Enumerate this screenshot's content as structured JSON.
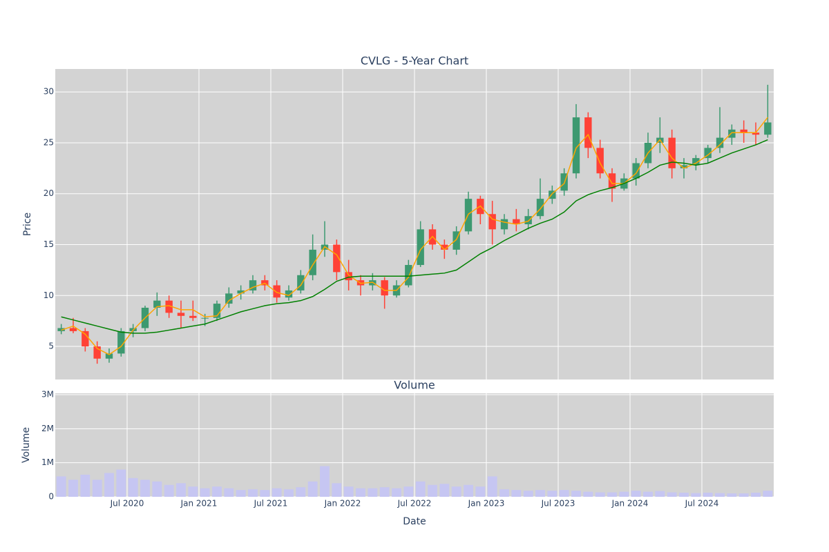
{
  "chart_data": [
    {
      "type": "candlestick",
      "title": "CVLG - 5-Year Chart",
      "y_label": "Price",
      "x": [
        "2020-01",
        "2020-02",
        "2020-03",
        "2020-04",
        "2020-05",
        "2020-06",
        "2020-07",
        "2020-08",
        "2020-09",
        "2020-10",
        "2020-11",
        "2020-12",
        "2021-01",
        "2021-02",
        "2021-03",
        "2021-04",
        "2021-05",
        "2021-06",
        "2021-07",
        "2021-08",
        "2021-09",
        "2021-10",
        "2021-11",
        "2021-12",
        "2022-01",
        "2022-02",
        "2022-03",
        "2022-04",
        "2022-05",
        "2022-06",
        "2022-07",
        "2022-08",
        "2022-09",
        "2022-10",
        "2022-11",
        "2022-12",
        "2023-01",
        "2023-02",
        "2023-03",
        "2023-04",
        "2023-05",
        "2023-06",
        "2023-07",
        "2023-08",
        "2023-09",
        "2023-10",
        "2023-11",
        "2023-12",
        "2024-01",
        "2024-02",
        "2024-03",
        "2024-04",
        "2024-05",
        "2024-06",
        "2024-07",
        "2024-08",
        "2024-09",
        "2024-10",
        "2024-11",
        "2024-12"
      ],
      "open": [
        6.5,
        6.8,
        6.5,
        5.0,
        3.8,
        4.3,
        6.5,
        6.8,
        8.8,
        9.5,
        8.3,
        8.0,
        7.8,
        7.8,
        9.2,
        10.2,
        10.5,
        11.5,
        11.0,
        9.8,
        10.5,
        12.0,
        14.5,
        15.0,
        12.3,
        11.5,
        11.0,
        11.5,
        10.0,
        11.0,
        13.0,
        16.5,
        15.0,
        14.5,
        16.3,
        19.5,
        18.0,
        16.5,
        17.5,
        17.0,
        17.8,
        19.5,
        20.3,
        22.0,
        27.5,
        24.5,
        22.0,
        20.5,
        21.5,
        23.0,
        25.0,
        25.5,
        22.5,
        22.8,
        23.5,
        24.5,
        25.5,
        26.3,
        26.0,
        25.8
      ],
      "high": [
        7.2,
        7.8,
        6.8,
        5.5,
        4.8,
        6.8,
        7.2,
        9.0,
        10.3,
        10.0,
        9.5,
        9.5,
        8.2,
        9.5,
        10.8,
        11.0,
        12.0,
        12.0,
        11.5,
        11.0,
        12.5,
        16.0,
        17.3,
        15.5,
        13.5,
        12.0,
        12.2,
        11.8,
        11.5,
        13.5,
        17.3,
        17.0,
        15.5,
        16.8,
        20.2,
        19.8,
        19.3,
        18.0,
        18.5,
        18.5,
        21.5,
        20.8,
        22.5,
        28.8,
        28.0,
        25.3,
        22.5,
        22.0,
        23.5,
        26.0,
        27.5,
        26.3,
        23.5,
        23.8,
        24.8,
        28.5,
        26.8,
        27.2,
        27.0,
        30.7
      ],
      "low": [
        6.2,
        6.3,
        4.5,
        3.3,
        3.4,
        4.0,
        5.9,
        6.5,
        8.0,
        7.8,
        6.8,
        7.5,
        7.0,
        7.5,
        8.8,
        9.6,
        10.2,
        10.5,
        9.3,
        9.5,
        10.2,
        11.5,
        13.8,
        11.5,
        10.5,
        10.0,
        10.5,
        8.7,
        9.8,
        10.8,
        12.8,
        14.5,
        13.6,
        14.0,
        16.0,
        17.0,
        15.0,
        16.0,
        16.3,
        16.5,
        17.5,
        19.0,
        19.8,
        21.5,
        23.5,
        21.5,
        19.2,
        20.3,
        20.8,
        22.5,
        24.0,
        21.5,
        21.5,
        22.3,
        23.0,
        24.0,
        24.8,
        25.0,
        24.8,
        25.5
      ],
      "close": [
        6.8,
        6.5,
        5.0,
        3.8,
        4.3,
        6.5,
        6.8,
        8.8,
        9.5,
        8.3,
        8.0,
        7.8,
        7.8,
        9.2,
        10.2,
        10.5,
        11.5,
        11.0,
        9.8,
        10.5,
        12.0,
        14.5,
        15.0,
        12.3,
        11.5,
        11.0,
        11.5,
        10.0,
        11.0,
        13.0,
        16.5,
        15.0,
        14.5,
        16.3,
        19.5,
        18.0,
        16.5,
        17.5,
        17.0,
        17.8,
        19.5,
        20.3,
        22.0,
        27.5,
        24.5,
        22.0,
        20.5,
        21.5,
        23.0,
        25.0,
        25.5,
        22.5,
        22.8,
        23.5,
        24.5,
        25.5,
        26.3,
        26.0,
        25.8,
        27.0
      ],
      "increasing_color": "#3d9970",
      "decreasing_color": "#ff4136",
      "overlays": [
        {
          "color": "orange",
          "values": [
            6.6,
            7.0,
            6.2,
            4.8,
            4.2,
            5.0,
            6.6,
            7.8,
            8.9,
            9.0,
            8.6,
            8.6,
            7.9,
            8.0,
            9.5,
            10.2,
            10.8,
            11.2,
            10.3,
            10.0,
            11.0,
            13.0,
            14.8,
            14.0,
            12.0,
            11.2,
            11.3,
            10.5,
            10.5,
            11.8,
            14.5,
            15.8,
            14.5,
            15.5,
            18.0,
            18.8,
            17.5,
            17.2,
            17.0,
            17.3,
            18.5,
            20.0,
            21.0,
            24.5,
            25.8,
            23.0,
            21.0,
            21.0,
            22.0,
            24.0,
            25.3,
            23.5,
            22.5,
            23.0,
            23.8,
            24.8,
            26.0,
            26.0,
            26.0,
            27.5
          ]
        },
        {
          "color": "green",
          "values": [
            7.9,
            7.6,
            7.3,
            7.0,
            6.7,
            6.4,
            6.3,
            6.3,
            6.4,
            6.6,
            6.8,
            7.0,
            7.2,
            7.6,
            8.0,
            8.4,
            8.7,
            9.0,
            9.2,
            9.3,
            9.5,
            9.9,
            10.6,
            11.4,
            11.8,
            11.9,
            11.9,
            11.9,
            11.9,
            11.9,
            12.0,
            12.1,
            12.2,
            12.5,
            13.3,
            14.1,
            14.7,
            15.4,
            16.0,
            16.6,
            17.1,
            17.5,
            18.2,
            19.3,
            19.9,
            20.3,
            20.6,
            21.0,
            21.5,
            22.1,
            22.8,
            23.1,
            23.0,
            22.8,
            23.0,
            23.5,
            24.0,
            24.4,
            24.8,
            25.3
          ]
        }
      ],
      "xlim": [
        "2020-01",
        "2025-01"
      ],
      "ylim": [
        1.75,
        32.25
      ],
      "yticks": [
        5,
        10,
        15,
        20,
        25,
        30
      ],
      "grid": true
    },
    {
      "type": "bar",
      "title": "Volume",
      "y_label": "Volume",
      "x_label": "Date",
      "x": [
        "2020-01",
        "2020-02",
        "2020-03",
        "2020-04",
        "2020-05",
        "2020-06",
        "2020-07",
        "2020-08",
        "2020-09",
        "2020-10",
        "2020-11",
        "2020-12",
        "2021-01",
        "2021-02",
        "2021-03",
        "2021-04",
        "2021-05",
        "2021-06",
        "2021-07",
        "2021-08",
        "2021-09",
        "2021-10",
        "2021-11",
        "2021-12",
        "2022-01",
        "2022-02",
        "2022-03",
        "2022-04",
        "2022-05",
        "2022-06",
        "2022-07",
        "2022-08",
        "2022-09",
        "2022-10",
        "2022-11",
        "2022-12",
        "2023-01",
        "2023-02",
        "2023-03",
        "2023-04",
        "2023-05",
        "2023-06",
        "2023-07",
        "2023-08",
        "2023-09",
        "2023-10",
        "2023-11",
        "2023-12",
        "2024-01",
        "2024-02",
        "2024-03",
        "2024-04",
        "2024-05",
        "2024-06",
        "2024-07",
        "2024-08",
        "2024-09",
        "2024-10",
        "2024-11",
        "2024-12"
      ],
      "values": [
        600000,
        500000,
        650000,
        500000,
        700000,
        800000,
        550000,
        500000,
        450000,
        350000,
        400000,
        300000,
        250000,
        300000,
        250000,
        200000,
        220000,
        200000,
        250000,
        220000,
        280000,
        450000,
        900000,
        400000,
        300000,
        250000,
        250000,
        280000,
        250000,
        300000,
        450000,
        350000,
        380000,
        300000,
        350000,
        300000,
        600000,
        220000,
        200000,
        180000,
        200000,
        180000,
        200000,
        180000,
        150000,
        130000,
        130000,
        150000,
        180000,
        150000,
        170000,
        130000,
        120000,
        110000,
        120000,
        110000,
        100000,
        100000,
        120000,
        180000
      ],
      "color": "#c6c6f2",
      "xlim": [
        "2020-01",
        "2025-01"
      ],
      "xticks": [
        {
          "value": "2020-07",
          "label": "Jul 2020"
        },
        {
          "value": "2021-01",
          "label": "Jan 2021"
        },
        {
          "value": "2021-07",
          "label": "Jul 2021"
        },
        {
          "value": "2022-01",
          "label": "Jan 2022"
        },
        {
          "value": "2022-07",
          "label": "Jul 2022"
        },
        {
          "value": "2023-01",
          "label": "Jan 2023"
        },
        {
          "value": "2023-07",
          "label": "Jul 2023"
        },
        {
          "value": "2024-01",
          "label": "Jan 2024"
        },
        {
          "value": "2024-07",
          "label": "Jul 2024"
        }
      ],
      "ylim": [
        0,
        3040000
      ],
      "yticks": [
        0,
        {
          "value": 1000000,
          "label": "1M"
        },
        {
          "value": 2000000,
          "label": "2M"
        },
        {
          "value": 3000000,
          "label": "3M"
        }
      ],
      "grid": true
    }
  ]
}
